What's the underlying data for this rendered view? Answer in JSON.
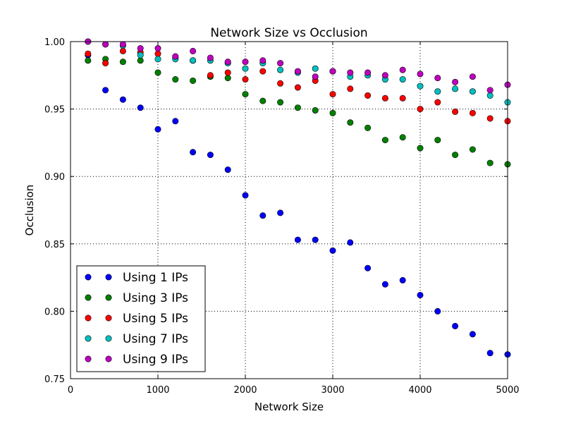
{
  "chart_data": {
    "type": "scatter",
    "title": "Network Size vs Occlusion",
    "xlabel": "Network Size",
    "ylabel": "Occlusion",
    "xlim": [
      0,
      5000
    ],
    "ylim": [
      0.75,
      1.0
    ],
    "xticks": [
      0,
      1000,
      2000,
      3000,
      4000,
      5000
    ],
    "yticks": [
      0.75,
      0.8,
      0.85,
      0.9,
      0.95,
      1.0
    ],
    "xtick_labels": [
      "0",
      "1000",
      "2000",
      "3000",
      "4000",
      "5000"
    ],
    "ytick_labels": [
      "0.75",
      "0.80",
      "0.85",
      "0.90",
      "0.95",
      "1.00"
    ],
    "grid": true,
    "legend_position": "lower-left",
    "x": [
      200,
      400,
      600,
      800,
      1000,
      1200,
      1400,
      1600,
      1800,
      2000,
      2200,
      2400,
      2600,
      2800,
      3000,
      3200,
      3400,
      3600,
      3800,
      4000,
      4200,
      4400,
      4600,
      4800,
      5000
    ],
    "series": [
      {
        "name": "Using 1 IPs",
        "color": "#0000ff",
        "values": [
          0.99,
          0.964,
          0.957,
          0.951,
          0.935,
          0.941,
          0.918,
          0.916,
          0.905,
          0.886,
          0.871,
          0.873,
          0.853,
          0.853,
          0.845,
          0.851,
          0.832,
          0.82,
          0.823,
          0.812,
          0.8,
          0.789,
          0.783,
          0.769,
          0.768
        ]
      },
      {
        "name": "Using 3 IPs",
        "color": "#008000",
        "values": [
          0.986,
          0.987,
          0.985,
          0.986,
          0.977,
          0.972,
          0.971,
          0.974,
          0.973,
          0.961,
          0.956,
          0.955,
          0.951,
          0.949,
          0.947,
          0.94,
          0.936,
          0.927,
          0.929,
          0.921,
          0.927,
          0.916,
          0.92,
          0.91,
          0.909
        ]
      },
      {
        "name": "Using 5 IPs",
        "color": "#ff0000",
        "values": [
          0.991,
          0.984,
          0.993,
          0.992,
          0.991,
          0.988,
          0.986,
          0.975,
          0.977,
          0.972,
          0.978,
          0.969,
          0.966,
          0.971,
          0.961,
          0.965,
          0.96,
          0.958,
          0.958,
          0.95,
          0.955,
          0.948,
          0.947,
          0.943,
          0.941
        ]
      },
      {
        "name": "Using 7 IPs",
        "color": "#00bfbf",
        "values": [
          1.0,
          0.998,
          0.997,
          0.99,
          0.987,
          0.987,
          0.986,
          0.986,
          0.984,
          0.98,
          0.984,
          0.979,
          0.977,
          0.98,
          0.978,
          0.974,
          0.975,
          0.972,
          0.972,
          0.967,
          0.963,
          0.965,
          0.963,
          0.96,
          0.955
        ]
      },
      {
        "name": "Using 9 IPs",
        "color": "#bf00bf",
        "values": [
          1.0,
          0.998,
          0.998,
          0.995,
          0.995,
          0.989,
          0.993,
          0.988,
          0.985,
          0.985,
          0.986,
          0.984,
          0.978,
          0.974,
          0.978,
          0.977,
          0.977,
          0.975,
          0.979,
          0.976,
          0.973,
          0.97,
          0.974,
          0.964,
          0.968
        ]
      }
    ]
  }
}
